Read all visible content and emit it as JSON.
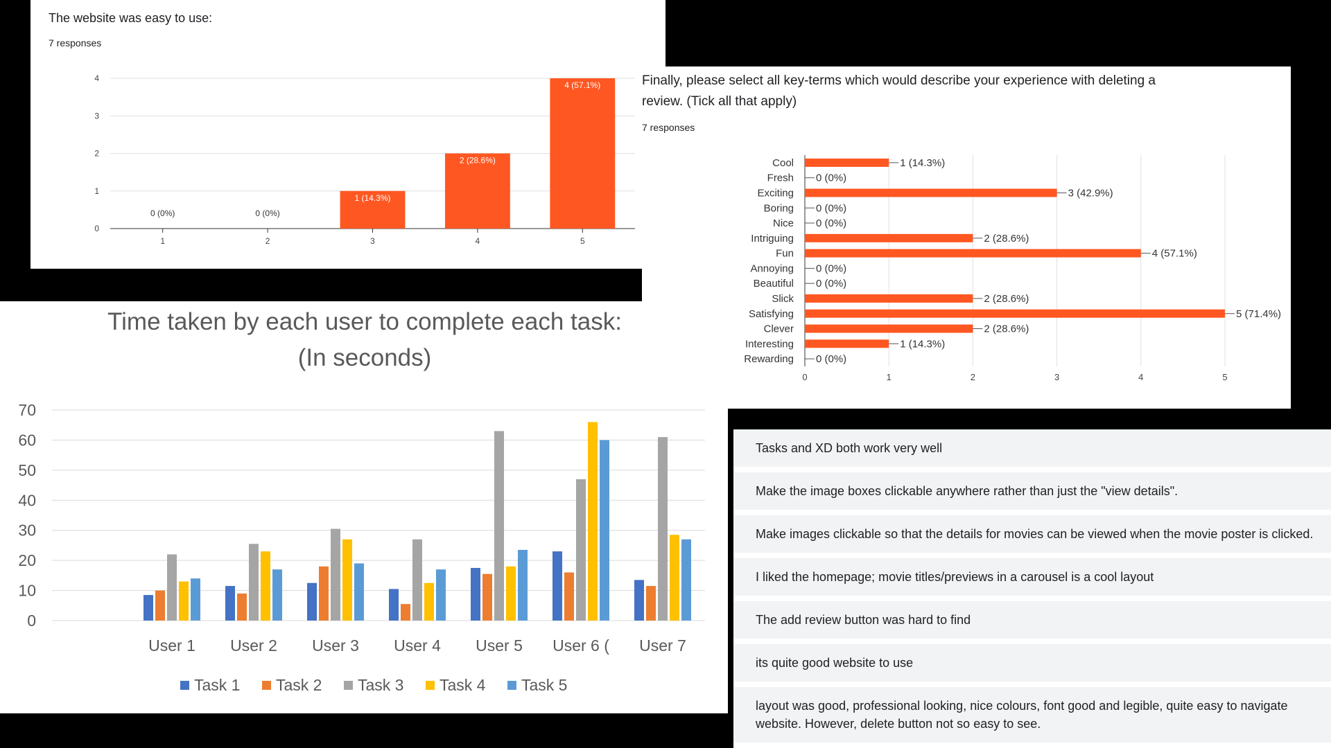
{
  "easy_chart": {
    "title": "The website was easy to use:",
    "responses": "7 responses",
    "chart_data": {
      "type": "bar",
      "categories": [
        "1",
        "2",
        "3",
        "4",
        "5"
      ],
      "values": [
        0,
        0,
        1,
        2,
        4
      ],
      "data_labels": [
        "0 (0%)",
        "0 (0%)",
        "1 (14.3%)",
        "2 (28.6%)",
        "4 (57.1%)"
      ],
      "ylim": [
        0,
        4
      ],
      "yticks": [
        0,
        1,
        2,
        3,
        4
      ],
      "grid": true,
      "color": "#ff5722"
    }
  },
  "terms_chart": {
    "title_line1": "Finally, please select all key-terms which would describe your experience with deleting a",
    "title_line2": "review. (Tick all that apply)",
    "responses": "7 responses",
    "chart_data": {
      "type": "bar",
      "orientation": "horizontal",
      "categories": [
        "Cool",
        "Fresh",
        "Exciting",
        "Boring",
        "Nice",
        "Intriguing",
        "Fun",
        "Annoying",
        "Beautiful",
        "Slick",
        "Satisfying",
        "Clever",
        "Interesting",
        "Rewarding"
      ],
      "values": [
        1,
        0,
        3,
        0,
        0,
        2,
        4,
        0,
        0,
        2,
        5,
        2,
        1,
        0
      ],
      "data_labels": [
        "1 (14.3%)",
        "0 (0%)",
        "3 (42.9%)",
        "0 (0%)",
        "0 (0%)",
        "2 (28.6%)",
        "4 (57.1%)",
        "0 (0%)",
        "0 (0%)",
        "2 (28.6%)",
        "5 (71.4%)",
        "2 (28.6%)",
        "1 (14.3%)",
        "0 (0%)"
      ],
      "xlim": [
        0,
        5
      ],
      "xticks": [
        0,
        1,
        2,
        3,
        4,
        5
      ],
      "grid": true,
      "color": "#ff5722"
    }
  },
  "time_chart": {
    "title_line1": "Time taken by each user to complete each task:",
    "title_line2": "(In seconds)",
    "chart_data": {
      "type": "bar",
      "categories": [
        "User 1",
        "User 2",
        "User 3",
        "User 4",
        "User 5",
        "User 6 (",
        "User 7"
      ],
      "series": [
        {
          "name": "Task 1",
          "color": "#4472c4",
          "values": [
            8.5,
            11.5,
            12.5,
            10.5,
            17.5,
            23,
            13.5
          ]
        },
        {
          "name": "Task 2",
          "color": "#ed7d31",
          "values": [
            10,
            9,
            18,
            5.5,
            15.5,
            16,
            11.5
          ]
        },
        {
          "name": "Task 3",
          "color": "#a5a5a5",
          "values": [
            22,
            25.5,
            30.5,
            27,
            63,
            47,
            61
          ]
        },
        {
          "name": "Task 4",
          "color": "#ffc000",
          "values": [
            13,
            23,
            27,
            12.5,
            18,
            66,
            28.5
          ]
        },
        {
          "name": "Task 5",
          "color": "#5b9bd5",
          "values": [
            14,
            17,
            19,
            17,
            23.5,
            60,
            27
          ]
        }
      ],
      "ylim": [
        0,
        70
      ],
      "yticks": [
        0,
        10,
        20,
        30,
        40,
        50,
        60,
        70
      ],
      "grid": true,
      "legend": "bottom"
    }
  },
  "feedback": {
    "items": [
      "Tasks and XD both work very well",
      "Make the image boxes clickable anywhere rather than just the \"view details\".",
      "Make images clickable so that the details for movies can be viewed when the movie poster is clicked.",
      "I liked the homepage; movie titles/previews in a carousel is a cool layout",
      "The add review button was hard to find",
      "its quite good website to use",
      "layout was good, professional looking, nice colours, font good and legible, quite easy to navigate website. However, delete button not so easy to see."
    ]
  }
}
